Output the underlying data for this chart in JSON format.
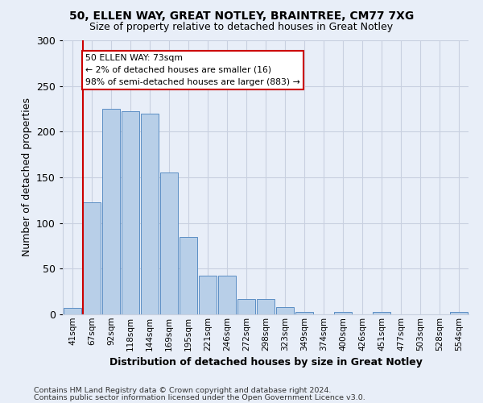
{
  "title1": "50, ELLEN WAY, GREAT NOTLEY, BRAINTREE, CM77 7XG",
  "title2": "Size of property relative to detached houses in Great Notley",
  "xlabel": "Distribution of detached houses by size in Great Notley",
  "ylabel": "Number of detached properties",
  "bar_labels": [
    "41sqm",
    "67sqm",
    "92sqm",
    "118sqm",
    "144sqm",
    "169sqm",
    "195sqm",
    "221sqm",
    "246sqm",
    "272sqm",
    "298sqm",
    "323sqm",
    "349sqm",
    "374sqm",
    "400sqm",
    "426sqm",
    "451sqm",
    "477sqm",
    "503sqm",
    "528sqm",
    "554sqm"
  ],
  "bar_heights": [
    7,
    123,
    225,
    222,
    220,
    155,
    85,
    42,
    42,
    17,
    17,
    8,
    3,
    0,
    3,
    0,
    3,
    0,
    0,
    0,
    3
  ],
  "bar_color": "#b8cfe8",
  "bar_edge_color": "#5b8ec4",
  "annotation_box_text": "50 ELLEN WAY: 73sqm\n← 2% of detached houses are smaller (16)\n98% of semi-detached houses are larger (883) →",
  "annotation_box_color": "#ffffff",
  "annotation_box_edge_color": "#cc0000",
  "property_line_bar_index": 1,
  "ylim": [
    0,
    300
  ],
  "yticks": [
    0,
    50,
    100,
    150,
    200,
    250,
    300
  ],
  "footer1": "Contains HM Land Registry data © Crown copyright and database right 2024.",
  "footer2": "Contains public sector information licensed under the Open Government Licence v3.0.",
  "background_color": "#e8eef8",
  "grid_color": "#c8d0e0"
}
